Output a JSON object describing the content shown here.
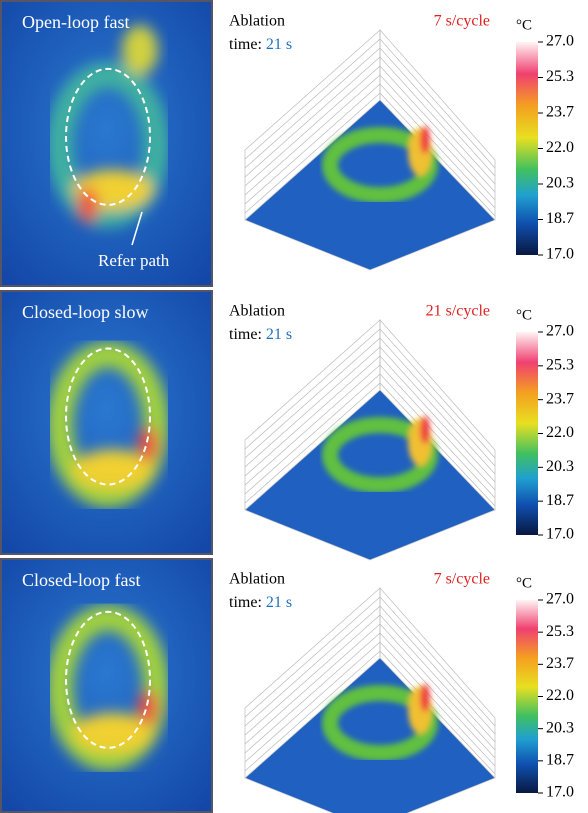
{
  "panels": [
    {
      "label": "Open-loop fast",
      "ablation": "Ablation",
      "time_label": "time:",
      "time_value": "21 s",
      "rate": "7 s/cycle",
      "annotation": "Refer path"
    },
    {
      "label": "Closed-loop slow",
      "ablation": "Ablation",
      "time_label": "time:",
      "time_value": "21 s",
      "rate": "21 s/cycle"
    },
    {
      "label": "Closed-loop fast",
      "ablation": "Ablation",
      "time_label": "time:",
      "time_value": "21 s",
      "rate": "7 s/cycle"
    }
  ],
  "colorbar": {
    "unit": "°C",
    "ticks": [
      "27.0",
      "25.3",
      "23.7",
      "22.0",
      "20.3",
      "18.7",
      "17.0"
    ]
  }
}
